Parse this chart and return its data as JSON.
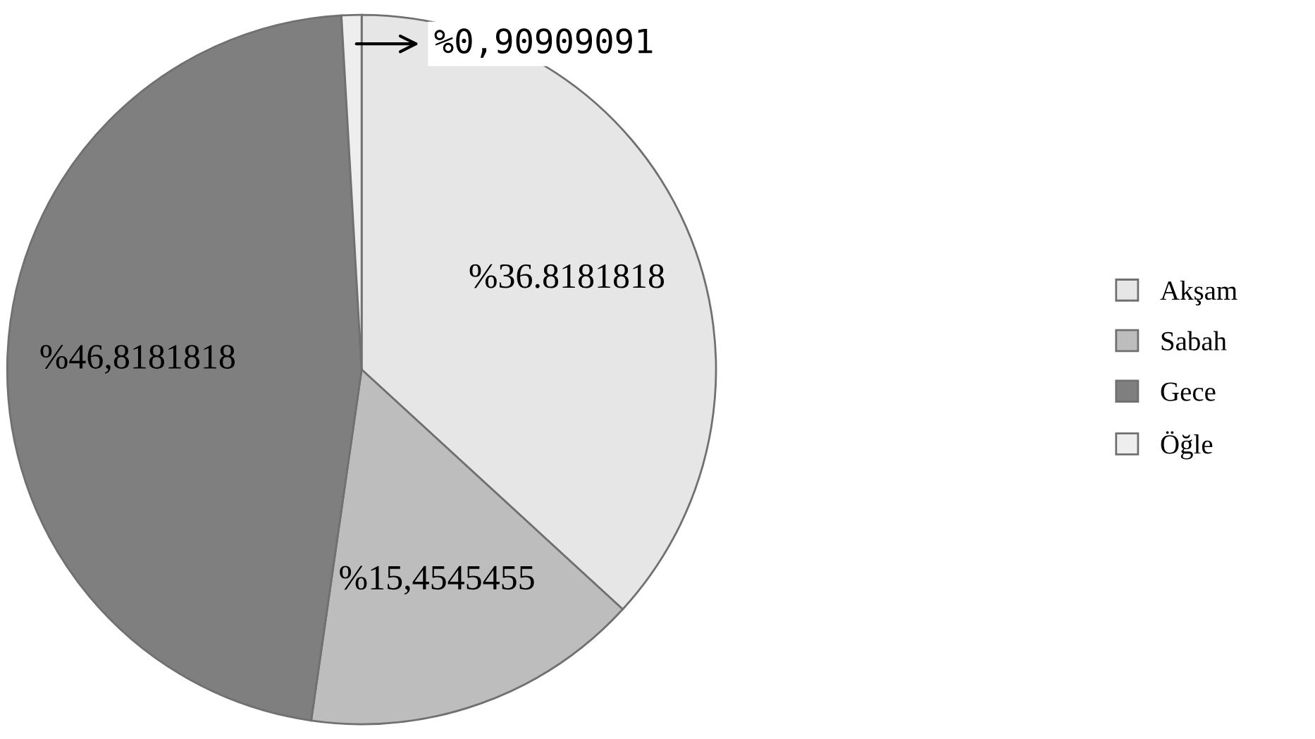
{
  "chart_data": {
    "type": "pie",
    "categories": [
      "Akşam",
      "Sabah",
      "Gece",
      "Öğle"
    ],
    "values": [
      36.8181818,
      15.4545455,
      46.8181818,
      0.90909091
    ],
    "value_labels": [
      "%36.8181818",
      "%15,4545455",
      "%46,8181818",
      "%0,90909091"
    ],
    "colors": [
      "#e6e6e6",
      "#bdbdbd",
      "#7f7f7f",
      "#eeeeee"
    ],
    "legend": "right"
  }
}
